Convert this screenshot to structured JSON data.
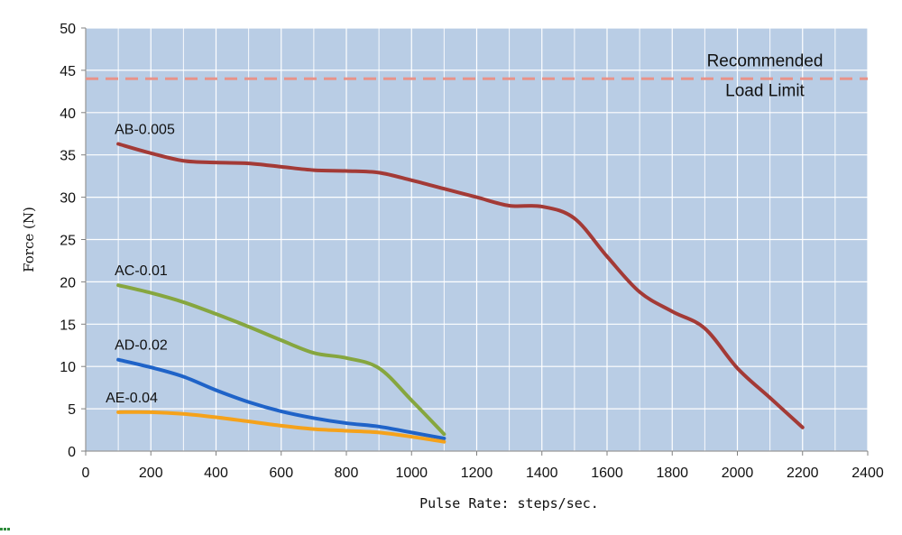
{
  "chart_data": {
    "type": "line",
    "title": "",
    "xlabel": "Pulse Rate: steps/sec.",
    "ylabel": "Force (N)",
    "xlim": [
      0,
      2400
    ],
    "ylim": [
      0,
      50
    ],
    "xticks": [
      0,
      200,
      400,
      600,
      800,
      1000,
      1200,
      1400,
      1600,
      1800,
      2000,
      2200,
      2400
    ],
    "yticks": [
      0,
      5,
      10,
      15,
      20,
      25,
      30,
      35,
      40,
      45,
      50
    ],
    "grid": true,
    "legend": "none (series labelled inline)",
    "plot_background": "#b9cde5",
    "gridline_color": "#ffffff",
    "reference_line": {
      "y": 44,
      "label_line1": "Recommended",
      "label_line2": "Load Limit",
      "color": "#e8938a",
      "style": "dashed"
    },
    "series": [
      {
        "name": "AB-0.005",
        "color": "#a33a36",
        "x": [
          100,
          200,
          300,
          400,
          500,
          600,
          700,
          800,
          900,
          1000,
          1100,
          1200,
          1300,
          1400,
          1500,
          1600,
          1700,
          1800,
          1900,
          2000,
          2100,
          2200
        ],
        "y": [
          36.3,
          35.2,
          34.3,
          34.1,
          34.0,
          33.6,
          33.2,
          33.1,
          32.9,
          32.0,
          31.0,
          30.0,
          29.0,
          28.9,
          27.5,
          23.0,
          18.8,
          16.5,
          14.5,
          9.8,
          6.3,
          2.8
        ]
      },
      {
        "name": "AC-0.01",
        "color": "#86a63f",
        "x": [
          100,
          200,
          300,
          400,
          500,
          600,
          700,
          800,
          900,
          1000,
          1100
        ],
        "y": [
          19.6,
          18.7,
          17.6,
          16.2,
          14.7,
          13.1,
          11.6,
          11.0,
          9.8,
          6.0,
          2.0
        ]
      },
      {
        "name": "AD-0.02",
        "color": "#1f63c8",
        "x": [
          100,
          200,
          300,
          400,
          500,
          600,
          700,
          800,
          900,
          1000,
          1100
        ],
        "y": [
          10.8,
          9.9,
          8.8,
          7.2,
          5.8,
          4.7,
          3.9,
          3.3,
          2.9,
          2.2,
          1.5
        ]
      },
      {
        "name": "AE-0.04",
        "color": "#f5a21b",
        "x": [
          100,
          200,
          300,
          400,
          500,
          600,
          700,
          800,
          900,
          1000,
          1100
        ],
        "y": [
          4.6,
          4.6,
          4.4,
          4.0,
          3.5,
          3.0,
          2.6,
          2.4,
          2.2,
          1.7,
          1.1
        ]
      }
    ]
  }
}
